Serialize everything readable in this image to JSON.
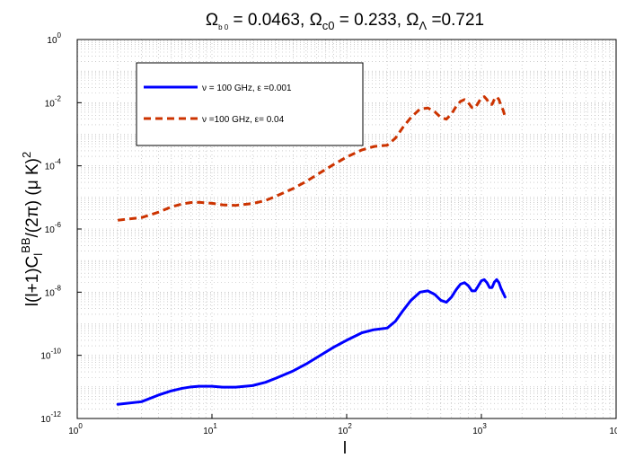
{
  "chart_data": {
    "type": "line",
    "title": "Ω_{b 0} = 0.0463, Ω_{c0} = 0.233, Ω_Λ =0.721",
    "title_parts": {
      "omega": "Ω",
      "lambda": "Λ",
      "sub_b": "b 0",
      "b_value": " = 0.0463, ",
      "sub_c": "c0",
      "c_value": " = 0.233, ",
      "l_value": " =0.721"
    },
    "xlabel": "l",
    "ylabel": "l(l+1)C_l^{BB}/(2π) (μ K)^2",
    "ylabel_parts": {
      "prefix": "l(l+1)C",
      "sub": "l",
      "sup": "BB",
      "mid": "/(2π) (μ K)",
      "sup2": "2"
    },
    "x_scale": "log",
    "y_scale": "log",
    "xlim": [
      1,
      10000
    ],
    "ylim": [
      1e-12,
      1
    ],
    "grid": true,
    "legend_position": "top-left",
    "x_ticks": [
      {
        "base": "10",
        "exp": "0"
      },
      {
        "base": "10",
        "exp": "1"
      },
      {
        "base": "10",
        "exp": "2"
      },
      {
        "base": "10",
        "exp": "3"
      },
      {
        "base": "10",
        "exp": ""
      }
    ],
    "y_ticks": [
      {
        "base": "10",
        "exp": "-12"
      },
      {
        "base": "10",
        "exp": "-10"
      },
      {
        "base": "10",
        "exp": "-8"
      },
      {
        "base": "10",
        "exp": "-6"
      },
      {
        "base": "10",
        "exp": "-4"
      },
      {
        "base": "10",
        "exp": "-2"
      },
      {
        "base": "10",
        "exp": "0"
      }
    ],
    "series": [
      {
        "name": "ν = 100 GHz, ε =0.001",
        "color": "#0000ff",
        "style": "solid",
        "x": [
          2,
          3,
          4,
          5,
          6,
          7,
          8,
          10,
          12,
          15,
          20,
          25,
          30,
          40,
          50,
          60,
          80,
          100,
          130,
          160,
          200,
          230,
          260,
          300,
          350,
          400,
          450,
          500,
          550,
          600,
          650,
          700,
          750,
          800,
          850,
          900,
          950,
          1000,
          1050,
          1100,
          1150,
          1200,
          1250,
          1300,
          1350,
          1400,
          1450,
          1500
        ],
        "y": [
          2.8e-12,
          3.4e-12,
          5.5e-12,
          7.5e-12,
          9e-12,
          1e-11,
          1.05e-11,
          1.05e-11,
          9.8e-12,
          9.8e-12,
          1.1e-11,
          1.4e-11,
          1.9e-11,
          3.2e-11,
          5.3e-11,
          8.5e-11,
          1.8e-10,
          3e-10,
          5.2e-10,
          6.5e-10,
          7.3e-10,
          1.2e-09,
          2.5e-09,
          5.5e-09,
          1e-08,
          1.1e-08,
          8.5e-09,
          5.5e-09,
          4.8e-09,
          7e-09,
          1.2e-08,
          1.8e-08,
          2e-08,
          1.6e-08,
          1.1e-08,
          1.1e-08,
          1.6e-08,
          2.3e-08,
          2.5e-08,
          2e-08,
          1.4e-08,
          1.4e-08,
          2.1e-08,
          2.5e-08,
          2e-08,
          1.3e-08,
          9.5e-09,
          7e-09
        ]
      },
      {
        "name": "ν =100 GHz, ε= 0.04",
        "color": "#cc3300",
        "style": "dashed",
        "x": [
          2,
          3,
          4,
          5,
          6,
          7,
          8,
          10,
          12,
          15,
          20,
          25,
          30,
          40,
          50,
          60,
          80,
          100,
          130,
          160,
          200,
          230,
          260,
          300,
          350,
          400,
          450,
          500,
          550,
          600,
          650,
          700,
          750,
          800,
          850,
          900,
          950,
          1000,
          1050,
          1100,
          1150,
          1200,
          1250,
          1300,
          1350,
          1400,
          1450,
          1500
        ],
        "y": [
          1.9e-06,
          2.3e-06,
          3.4e-06,
          5e-06,
          6.2e-06,
          6.9e-06,
          7e-06,
          6.5e-06,
          5.8e-06,
          5.6e-06,
          6.4e-06,
          8e-06,
          1.1e-05,
          1.9e-05,
          3.2e-05,
          5.2e-05,
          0.00011,
          0.00019,
          0.00032,
          0.00041,
          0.00045,
          0.00075,
          0.0016,
          0.0034,
          0.0063,
          0.0068,
          0.0052,
          0.0034,
          0.003,
          0.0044,
          0.0076,
          0.011,
          0.0125,
          0.01,
          0.007,
          0.0068,
          0.01,
          0.0145,
          0.0155,
          0.0125,
          0.0088,
          0.0088,
          0.013,
          0.0155,
          0.0125,
          0.008,
          0.0058,
          0.0036
        ]
      }
    ]
  }
}
